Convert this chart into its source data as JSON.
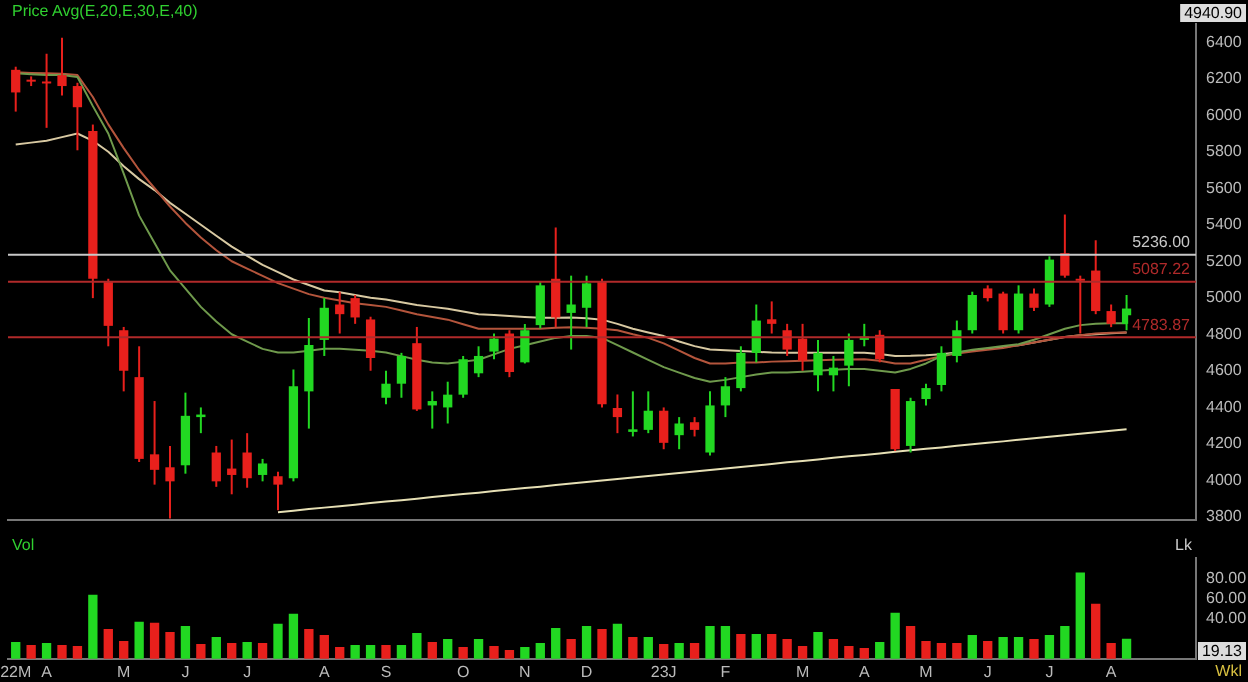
{
  "chart_data": [
    {
      "type": "candlestick",
      "subtitle": "Price Avg(E,20,E,30,E,40)",
      "tick_labels": "y",
      "categories": [
        null,
        null,
        null,
        null,
        null,
        null,
        null,
        null,
        null,
        null,
        null,
        null,
        null,
        null,
        null,
        null,
        null,
        null,
        null,
        null,
        null,
        null,
        null,
        null,
        null,
        null,
        null,
        null,
        null,
        null,
        null,
        null,
        null,
        null,
        null,
        null,
        null,
        null,
        null,
        null,
        null,
        null,
        null,
        null,
        null,
        null,
        null,
        null,
        null,
        null,
        null,
        null,
        null,
        null,
        null,
        null,
        null,
        null,
        null,
        null,
        null,
        null,
        null,
        null,
        null,
        null,
        null,
        null,
        null,
        null,
        null,
        null,
        null
      ],
      "ohlc": [
        [
          6249,
          6266,
          6020,
          6125
        ],
        [
          6195,
          6213,
          6160,
          6190
        ],
        [
          6185,
          6337,
          5931,
          6180
        ],
        [
          6220,
          6425,
          6108,
          6160
        ],
        [
          6160,
          6178,
          5808,
          6044
        ],
        [
          5914,
          5949,
          4998,
          5104
        ],
        [
          5086,
          5104,
          4734,
          4846
        ],
        [
          4822,
          4840,
          4487,
          4600
        ],
        [
          4565,
          4734,
          4100,
          4117
        ],
        [
          4142,
          4434,
          3976,
          4057
        ],
        [
          4071,
          4188,
          3790,
          3994
        ],
        [
          4082,
          4480,
          4036,
          4353
        ],
        [
          4346,
          4399,
          4258,
          4360
        ],
        [
          4152,
          4188,
          3964,
          3994
        ],
        [
          4064,
          4223,
          3923,
          4029
        ],
        [
          4152,
          4258,
          3959,
          4011
        ],
        [
          4029,
          4117,
          3994,
          4092
        ],
        [
          4022,
          4047,
          3835,
          3976
        ],
        [
          4011,
          4607,
          3994,
          4515
        ],
        [
          4487,
          4889,
          4283,
          4741
        ],
        [
          4769,
          4998,
          4681,
          4945
        ],
        [
          4963,
          5033,
          4804,
          4910
        ],
        [
          4998,
          5015,
          4857,
          4892
        ],
        [
          4881,
          4896,
          4600,
          4670
        ],
        [
          4452,
          4600,
          4417,
          4529
        ],
        [
          4529,
          4698,
          4452,
          4681
        ],
        [
          4751,
          4840,
          4380,
          4388
        ],
        [
          4410,
          4487,
          4283,
          4434
        ],
        [
          4399,
          4540,
          4311,
          4469
        ],
        [
          4469,
          4681,
          4452,
          4663
        ],
        [
          4586,
          4734,
          4565,
          4681
        ],
        [
          4705,
          4804,
          4663,
          4776
        ],
        [
          4804,
          4822,
          4565,
          4593
        ],
        [
          4646,
          4856,
          4640,
          4822
        ],
        [
          4850,
          5086,
          4832,
          5068
        ],
        [
          5104,
          5385,
          4839,
          4892
        ],
        [
          4917,
          5121,
          4716,
          4963
        ],
        [
          4945,
          5121,
          4839,
          5079
        ],
        [
          5086,
          5104,
          4399,
          4417
        ],
        [
          4396,
          4470,
          4258,
          4346
        ],
        [
          4265,
          4487,
          4240,
          4279
        ],
        [
          4276,
          4487,
          4258,
          4381
        ],
        [
          4381,
          4399,
          4170,
          4205
        ],
        [
          4247,
          4346,
          4170,
          4311
        ],
        [
          4318,
          4346,
          4240,
          4276
        ],
        [
          4152,
          4487,
          4135,
          4410
        ],
        [
          4410,
          4565,
          4346,
          4515
        ],
        [
          4505,
          4734,
          4487,
          4698
        ],
        [
          4698,
          4963,
          4646,
          4875
        ],
        [
          4882,
          4980,
          4804,
          4857
        ],
        [
          4822,
          4857,
          4681,
          4716
        ],
        [
          4776,
          4857,
          4600,
          4656
        ],
        [
          4575,
          4769,
          4487,
          4698
        ],
        [
          4575,
          4681,
          4487,
          4617
        ],
        [
          4628,
          4804,
          4515,
          4769
        ],
        [
          4769,
          4857,
          4734,
          4787
        ],
        [
          4797,
          4822,
          4646,
          4663
        ],
        [
          4500,
          4500,
          4160,
          4170
        ],
        [
          4188,
          4452,
          4152,
          4434
        ],
        [
          4445,
          4529,
          4410,
          4505
        ],
        [
          4522,
          4734,
          4487,
          4698
        ],
        [
          4681,
          4875,
          4646,
          4822
        ],
        [
          4822,
          5033,
          4804,
          5015
        ],
        [
          5051,
          5068,
          4980,
          4998
        ],
        [
          5023,
          5033,
          4804,
          4822
        ],
        [
          4822,
          5068,
          4804,
          5023
        ],
        [
          5023,
          5051,
          4927,
          4945
        ],
        [
          4963,
          5227,
          4950,
          5209
        ],
        [
          5244,
          5456,
          5110,
          5121
        ],
        [
          5104,
          5121,
          4804,
          5097
        ],
        [
          5149,
          5315,
          4910,
          4927
        ],
        [
          4927,
          4963,
          4839,
          4857
        ],
        [
          4857,
          5015,
          4822,
          4940.9
        ]
      ],
      "colors": [
        "#e8201c",
        "#e8201c",
        "#e8201c",
        "#e8201c",
        "#e8201c",
        "#e8201c",
        "#e8201c",
        "#e8201c",
        "#e8201c",
        "#e8201c",
        "#e8201c",
        "#22d822",
        "#22d822",
        "#e8201c",
        "#e8201c",
        "#e8201c",
        "#22d822",
        "#e8201c",
        "#22d822",
        "#22d822",
        "#22d822",
        "#e8201c",
        "#e8201c",
        "#e8201c",
        "#22d822",
        "#22d822",
        "#e8201c",
        "#22d822",
        "#22d822",
        "#22d822",
        "#22d822",
        "#22d822",
        "#e8201c",
        "#22d822",
        "#22d822",
        "#e8201c",
        "#22d822",
        "#22d822",
        "#e8201c",
        "#e8201c",
        "#22d822",
        "#22d822",
        "#e8201c",
        "#22d822",
        "#e8201c",
        "#22d822",
        "#22d822",
        "#22d822",
        "#22d822",
        "#e8201c",
        "#e8201c",
        "#e8201c",
        "#22d822",
        "#22d822",
        "#22d822",
        "#22d822",
        "#e8201c",
        "#e8201c",
        "#22d822",
        "#22d822",
        "#22d822",
        "#22d822",
        "#22d822",
        "#e8201c",
        "#e8201c",
        "#22d822",
        "#e8201c",
        "#22d822",
        "#e8201c",
        "#e8201c",
        "#e8201c",
        "#e8201c",
        "#22d822"
      ],
      "series": [
        {
          "type": "line",
          "color": "#6f9a4c",
          "values": [
            6230,
            6225,
            6220,
            6220,
            6210,
            6050,
            5900,
            5680,
            5450,
            5300,
            5150,
            5050,
            4950,
            4870,
            4800,
            4760,
            4720,
            4700,
            4700,
            4710,
            4720,
            4720,
            4715,
            4710,
            4700,
            4680,
            4660,
            4645,
            4640,
            4650,
            4660,
            4690,
            4720,
            4740,
            4760,
            4780,
            4790,
            4790,
            4780,
            4740,
            4700,
            4660,
            4620,
            4590,
            4560,
            4540,
            4550,
            4565,
            4580,
            4590,
            4590,
            4595,
            4600,
            4605,
            4610,
            4610,
            4600,
            4590,
            4610,
            4640,
            4680,
            4700,
            4715,
            4725,
            4735,
            4745,
            4770,
            4800,
            4830,
            4850,
            4857,
            4860,
            4860
          ]
        },
        {
          "type": "line",
          "color": "#b4553c",
          "values": [
            6235,
            6232,
            6230,
            6228,
            6220,
            6100,
            5950,
            5820,
            5700,
            5600,
            5500,
            5410,
            5330,
            5260,
            5200,
            5160,
            5120,
            5080,
            5050,
            5020,
            5000,
            4985,
            4970,
            4960,
            4950,
            4930,
            4910,
            4895,
            4880,
            4855,
            4830,
            4830,
            4830,
            4830,
            4830,
            4835,
            4839,
            4835,
            4830,
            4822,
            4800,
            4780,
            4750,
            4710,
            4670,
            4640,
            4640,
            4645,
            4645,
            4650,
            4652,
            4655,
            4658,
            4660,
            4662,
            4663,
            4655,
            4640,
            4640,
            4660,
            4680,
            4695,
            4705,
            4715,
            4725,
            4740,
            4755,
            4770,
            4785,
            4795,
            4804,
            4808,
            4810
          ]
        },
        {
          "type": "line",
          "color": "#d8c9a2",
          "values": [
            5840,
            5850,
            5860,
            5880,
            5900,
            5860,
            5800,
            5720,
            5650,
            5590,
            5520,
            5460,
            5400,
            5340,
            5280,
            5230,
            5180,
            5140,
            5100,
            5070,
            5040,
            5030,
            5015,
            5000,
            4990,
            4975,
            4960,
            4950,
            4940,
            4925,
            4910,
            4905,
            4900,
            4895,
            4890,
            4890,
            4892,
            4888,
            4880,
            4857,
            4830,
            4810,
            4790,
            4760,
            4735,
            4716,
            4712,
            4708,
            4704,
            4700,
            4698,
            4698,
            4698,
            4698,
            4698,
            4698,
            4692,
            4681,
            4682,
            4685,
            4690,
            4700,
            4710,
            4720,
            4730,
            4740,
            4755,
            4770,
            4785,
            4795,
            4800,
            4805,
            4810
          ]
        },
        {
          "type": "line",
          "color": "#e6dfb4",
          "values": [
            null,
            null,
            null,
            null,
            null,
            null,
            null,
            null,
            null,
            null,
            null,
            null,
            null,
            null,
            null,
            null,
            null,
            3825,
            3833,
            3842,
            3850,
            3858,
            3866,
            3875,
            3883,
            3891,
            3899,
            3908,
            3916,
            3924,
            3932,
            3941,
            3949,
            3957,
            3965,
            3974,
            3982,
            3990,
            3999,
            4007,
            4015,
            4023,
            4032,
            4040,
            4048,
            4056,
            4065,
            4073,
            4081,
            4089,
            4098,
            4106,
            4114,
            4123,
            4131,
            4139,
            4147,
            4156,
            4164,
            4172,
            4180,
            4189,
            4197,
            4205,
            4213,
            4222,
            4230,
            4238,
            4246,
            4255,
            4263,
            4271,
            4279
          ]
        }
      ],
      "ylim": [
        3780,
        6500
      ],
      "yticks": [
        3800,
        4000,
        4200,
        4400,
        4600,
        4800,
        5000,
        5200,
        5400,
        5600,
        5800,
        6000,
        6200,
        6400
      ],
      "ref_lines": [
        {
          "axis": "y",
          "value": 5236,
          "label": "5236.00",
          "color": "#c8c8c8"
        },
        {
          "axis": "y",
          "value": 5087.22,
          "label": "5087.22",
          "color": "#b02a2a"
        },
        {
          "axis": "y",
          "value": 4783.87,
          "label": "4783.87",
          "color": "#b02a2a"
        }
      ],
      "annotations": [
        "4940.90"
      ]
    },
    {
      "type": "bar",
      "title": "Vol",
      "ylabel": "Lk",
      "categories": [
        "22M",
        null,
        "A",
        null,
        null,
        null,
        null,
        "M",
        null,
        null,
        null,
        "J",
        null,
        null,
        null,
        "J",
        null,
        null,
        null,
        null,
        "A",
        null,
        null,
        null,
        "S",
        null,
        null,
        null,
        null,
        "O",
        null,
        null,
        null,
        "N",
        null,
        null,
        null,
        "D",
        null,
        null,
        null,
        null,
        "23J",
        null,
        null,
        null,
        "F",
        null,
        null,
        null,
        null,
        "M",
        null,
        null,
        null,
        "A",
        null,
        null,
        null,
        "M",
        null,
        null,
        null,
        "J",
        null,
        null,
        null,
        "J",
        null,
        null,
        null,
        "A",
        null
      ],
      "values": [
        16,
        13,
        15,
        13,
        12,
        63,
        29,
        17,
        36,
        35,
        26,
        32,
        14,
        21,
        15,
        16,
        15,
        34,
        44,
        29,
        23,
        11,
        13,
        13,
        13,
        13,
        25,
        16,
        19,
        11,
        19,
        12,
        8,
        11,
        15,
        30,
        19,
        32,
        29,
        34,
        21,
        21,
        14,
        15,
        15,
        32,
        32,
        24,
        24,
        24,
        19,
        12,
        26,
        19,
        12,
        10,
        16,
        45,
        32,
        17,
        15,
        15,
        23,
        17,
        21,
        21,
        19,
        23,
        32,
        85,
        54,
        15,
        19.13
      ],
      "colors": [
        "#22d822",
        "#e8201c",
        "#22d822",
        "#e8201c",
        "#e8201c",
        "#22d822",
        "#e8201c",
        "#e8201c",
        "#22d822",
        "#e8201c",
        "#e8201c",
        "#22d822",
        "#e8201c",
        "#22d822",
        "#e8201c",
        "#22d822",
        "#e8201c",
        "#22d822",
        "#22d822",
        "#e8201c",
        "#e8201c",
        "#e8201c",
        "#22d822",
        "#22d822",
        "#e8201c",
        "#22d822",
        "#22d822",
        "#e8201c",
        "#22d822",
        "#e8201c",
        "#22d822",
        "#e8201c",
        "#e8201c",
        "#22d822",
        "#22d822",
        "#22d822",
        "#e8201c",
        "#22d822",
        "#e8201c",
        "#22d822",
        "#e8201c",
        "#22d822",
        "#e8201c",
        "#22d822",
        "#e8201c",
        "#22d822",
        "#22d822",
        "#e8201c",
        "#22d822",
        "#e8201c",
        "#e8201c",
        "#e8201c",
        "#22d822",
        "#e8201c",
        "#e8201c",
        "#e8201c",
        "#22d822",
        "#22d822",
        "#e8201c",
        "#e8201c",
        "#e8201c",
        "#e8201c",
        "#22d822",
        "#e8201c",
        "#22d822",
        "#22d822",
        "#e8201c",
        "#22d822",
        "#22d822",
        "#22d822",
        "#e8201c",
        "#e8201c",
        "#22d822"
      ],
      "ylim": [
        0,
        100
      ],
      "yticks": [
        {
          "value": 40,
          "label": "40.00"
        },
        {
          "value": 60,
          "label": "60.00"
        },
        {
          "value": 80,
          "label": "80.00"
        }
      ],
      "annotations": [
        "19.13",
        "Wkl"
      ]
    }
  ]
}
